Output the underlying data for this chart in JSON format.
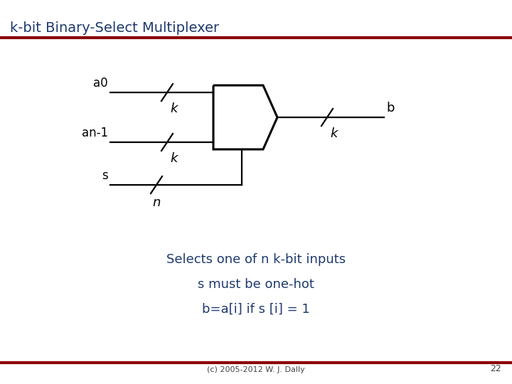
{
  "title": "k-bit Binary-Select Multiplexer",
  "title_color": "#1F3A6E",
  "title_fontsize": 14,
  "bg_color": "#FFFFFF",
  "rule_color": "#8B0000",
  "text_lines": [
    "Selects one of n k-bit inputs",
    "s must be one-hot",
    "b=a[i] if s [i] = 1"
  ],
  "text_color": "#1F3A6E",
  "text_fontsizes": [
    13,
    13,
    13
  ],
  "footer_text": "(c) 2005-2012 W. J. Dally",
  "footer_color": "#444444",
  "footer_fontsize": 8,
  "page_number": "22",
  "line_color": "#000000",
  "label_color": "#000000",
  "lw_mux": 2.2,
  "lw_wire": 1.6,
  "lw_slash": 1.6
}
